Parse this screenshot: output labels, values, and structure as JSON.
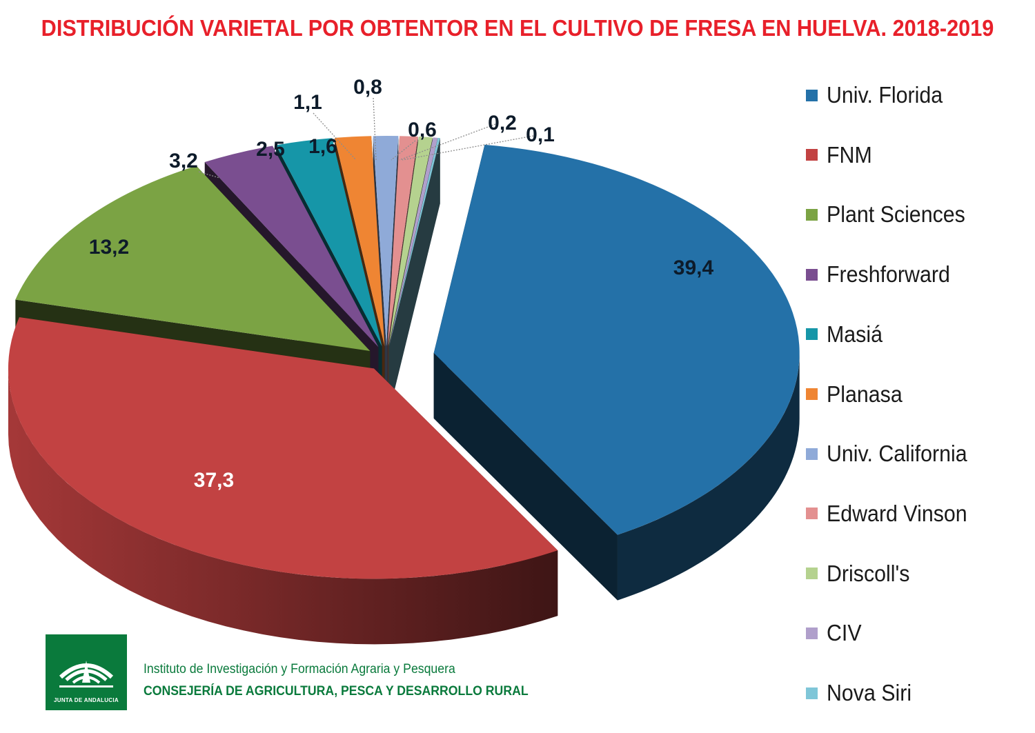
{
  "chart_data": {
    "type": "pie",
    "title": "DISTRIBUCIÓN VARIETAL POR OBTENTOR EN EL CULTIVO DE FRESA EN HUELVA. 2018-2019",
    "legend_position": "right",
    "slices": [
      {
        "name": "Univ. Florida",
        "value": 39.4,
        "label": "39,4",
        "color": "#2471a8"
      },
      {
        "name": "FNM",
        "value": 37.3,
        "label": "37,3",
        "color": "#c24242"
      },
      {
        "name": "Plant Sciences",
        "value": 13.2,
        "label": "13,2",
        "color": "#7ba344"
      },
      {
        "name": "Freshforward",
        "value": 3.2,
        "label": "3,2",
        "color": "#7a4e90"
      },
      {
        "name": "Masiá",
        "value": 2.5,
        "label": "2,5",
        "color": "#1696a8"
      },
      {
        "name": "Planasa",
        "value": 1.6,
        "label": "1,6",
        "color": "#ef8533"
      },
      {
        "name": "Univ. California",
        "value": 1.1,
        "label": "1,1",
        "color": "#8faad8"
      },
      {
        "name": "Edward Vinson",
        "value": 0.8,
        "label": "0,8",
        "color": "#e39090"
      },
      {
        "name": "Driscoll's",
        "value": 0.6,
        "label": "0,6",
        "color": "#b5d28f"
      },
      {
        "name": "CIV",
        "value": 0.2,
        "label": "0,2",
        "color": "#b09fcb"
      },
      {
        "name": "Nova Siri",
        "value": 0.1,
        "label": "0,1",
        "color": "#7fc6d8"
      }
    ]
  },
  "footer": {
    "logo_text": "JUNTA DE ANDALUCIA",
    "institute": "Instituto de Investigación y Formación Agraria y Pesquera",
    "ministry": "CONSEJERÍA DE AGRICULTURA, PESCA Y DESARROLLO RURAL"
  }
}
